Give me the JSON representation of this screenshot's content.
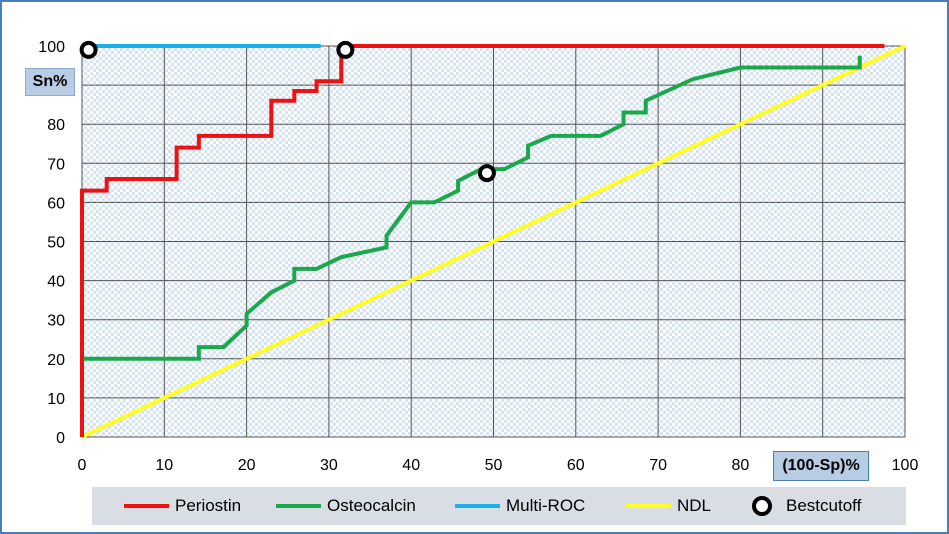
{
  "chart_data": {
    "type": "line",
    "xlabel": "(100-Sp)%",
    "ylabel": "Sn%",
    "xlim": [
      0,
      100
    ],
    "ylim": [
      0,
      100
    ],
    "xticks": [
      0,
      10,
      20,
      30,
      40,
      50,
      60,
      70,
      80,
      90,
      100
    ],
    "yticks": [
      0,
      10,
      20,
      30,
      40,
      50,
      60,
      70,
      80,
      90,
      100
    ],
    "grid": true,
    "legend_position": "bottom",
    "series": [
      {
        "name": "Periostin",
        "color": "#ee1111",
        "points": [
          [
            0,
            0
          ],
          [
            0,
            63
          ],
          [
            3,
            63
          ],
          [
            3,
            66
          ],
          [
            11.5,
            66
          ],
          [
            11.5,
            74
          ],
          [
            14.2,
            74
          ],
          [
            14.2,
            77
          ],
          [
            23,
            77
          ],
          [
            23,
            86
          ],
          [
            25.8,
            86
          ],
          [
            25.8,
            88.5
          ],
          [
            28.5,
            88.5
          ],
          [
            28.5,
            91
          ],
          [
            31.5,
            91
          ],
          [
            31.5,
            100
          ],
          [
            97.5,
            100
          ]
        ]
      },
      {
        "name": "Osteocalcin",
        "color": "#1aa84a",
        "points": [
          [
            0,
            0
          ],
          [
            0,
            20
          ],
          [
            14.2,
            20
          ],
          [
            14.2,
            23
          ],
          [
            17.2,
            23
          ],
          [
            20,
            28.5
          ],
          [
            20,
            31.5
          ],
          [
            23,
            37
          ],
          [
            25.8,
            40
          ],
          [
            25.8,
            43
          ],
          [
            28.5,
            43
          ],
          [
            31.5,
            46
          ],
          [
            37,
            48.5
          ],
          [
            37,
            51.5
          ],
          [
            40,
            60
          ],
          [
            42.8,
            60
          ],
          [
            45.7,
            63
          ],
          [
            45.7,
            65.5
          ],
          [
            48.5,
            68.5
          ],
          [
            51.3,
            68.5
          ],
          [
            54.2,
            71.5
          ],
          [
            54.2,
            74.5
          ],
          [
            57,
            77
          ],
          [
            63,
            77
          ],
          [
            65.8,
            80
          ],
          [
            65.8,
            83
          ],
          [
            68.5,
            83
          ],
          [
            68.5,
            86
          ],
          [
            74.2,
            91.5
          ],
          [
            80,
            94.5
          ],
          [
            94.5,
            94.5
          ],
          [
            94.5,
            97.5
          ]
        ]
      },
      {
        "name": "Multi-ROC",
        "color": "#1ab0e8",
        "points": [
          [
            0,
            100
          ],
          [
            29,
            100
          ]
        ]
      },
      {
        "name": "NDL",
        "color": "#ffff22",
        "points": [
          [
            0,
            0
          ],
          [
            100,
            100
          ]
        ]
      },
      {
        "name": "Bestcutoff",
        "color": "#000000",
        "marker": "circle",
        "points": [
          [
            0.8,
            99
          ],
          [
            32,
            99
          ],
          [
            49.2,
            67.5
          ]
        ]
      }
    ]
  }
}
